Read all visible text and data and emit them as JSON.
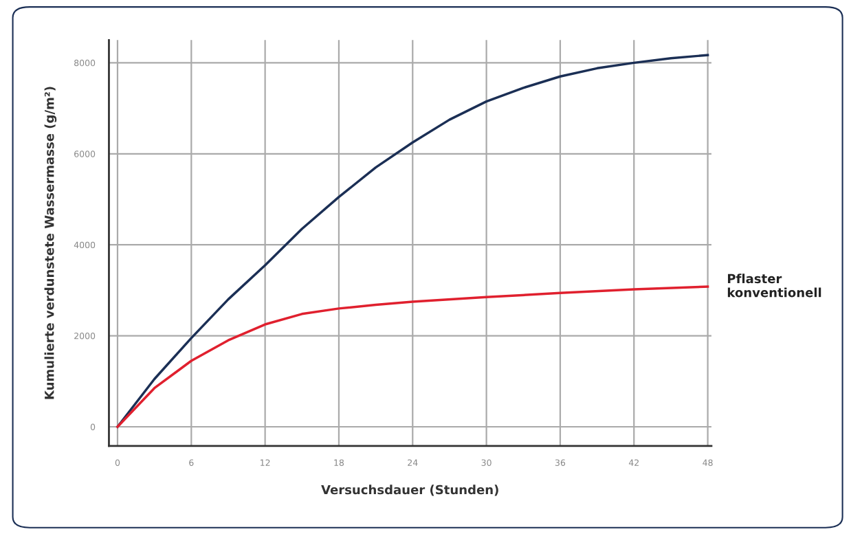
{
  "chart_data": {
    "type": "line",
    "xlabel": "Versuchsdauer (Stunden)",
    "ylabel": "Kumulierte verdunstete Wassermasse (g/m²)",
    "xlim": [
      -0.7,
      48.3
    ],
    "ylim": [
      -420,
      8500
    ],
    "xticks": [
      0,
      6,
      12,
      18,
      24,
      30,
      36,
      42,
      48
    ],
    "yticks": [
      0,
      2000,
      4000,
      6000,
      8000
    ],
    "grid": true,
    "legend": false,
    "marker": "none",
    "line_style": "solid",
    "series": [
      {
        "color": "#1b2f55",
        "x": [
          0,
          3,
          6,
          9,
          12,
          15,
          18,
          21,
          24,
          27,
          30,
          33,
          36,
          39,
          42,
          45,
          48
        ],
        "values": [
          0,
          1050,
          1950,
          2800,
          3550,
          4350,
          5050,
          5700,
          6250,
          6750,
          7150,
          7450,
          7700,
          7880,
          8000,
          8100,
          8170
        ]
      },
      {
        "name": "Pflaster\nkonventionell",
        "color": "#e0202e",
        "x": [
          0,
          3,
          6,
          9,
          12,
          15,
          18,
          21,
          24,
          30,
          36,
          42,
          48
        ],
        "values": [
          0,
          850,
          1450,
          1900,
          2250,
          2480,
          2600,
          2680,
          2750,
          2850,
          2940,
          3020,
          3080
        ]
      }
    ]
  }
}
